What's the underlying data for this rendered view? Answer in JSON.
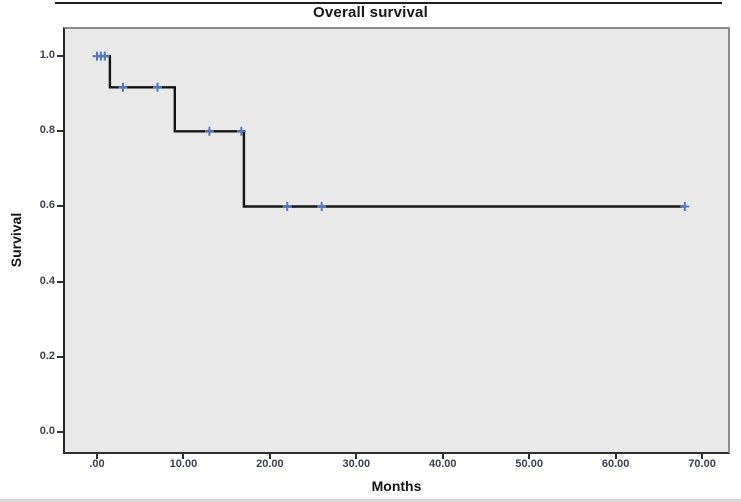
{
  "chart_data": {
    "type": "line",
    "subtype": "kaplan-meier-step",
    "title": "Overall survival",
    "xlabel": "Months",
    "ylabel": "Survival",
    "xlim": [
      -3.7,
      73.0
    ],
    "ylim": [
      -0.053,
      1.072
    ],
    "grid": false,
    "legend": false,
    "x_ticks": [
      {
        "value": 0,
        "label": ".00"
      },
      {
        "value": 10,
        "label": "10.00"
      },
      {
        "value": 20,
        "label": "20.00"
      },
      {
        "value": 30,
        "label": "30.00"
      },
      {
        "value": 40,
        "label": "40.00"
      },
      {
        "value": 50,
        "label": "50.00"
      },
      {
        "value": 60,
        "label": "60.00"
      },
      {
        "value": 70,
        "label": "70.00"
      }
    ],
    "y_ticks": [
      {
        "value": 0.0,
        "label": "0.0"
      },
      {
        "value": 0.2,
        "label": "0.2"
      },
      {
        "value": 0.4,
        "label": "0.4"
      },
      {
        "value": 0.6,
        "label": "0.6"
      },
      {
        "value": 0.8,
        "label": "0.8"
      },
      {
        "value": 1.0,
        "label": "1.0"
      }
    ],
    "series": [
      {
        "name": "Overall survival",
        "step_points": [
          [
            0,
            1.0
          ],
          [
            1.5,
            1.0
          ],
          [
            1.5,
            0.917
          ],
          [
            9,
            0.917
          ],
          [
            9,
            0.8
          ],
          [
            17,
            0.8
          ],
          [
            17,
            0.6
          ],
          [
            68,
            0.6
          ]
        ]
      }
    ],
    "censored_points": [
      [
        0,
        1.0
      ],
      [
        0.45,
        1.0
      ],
      [
        0.9,
        1.0
      ],
      [
        3,
        0.917
      ],
      [
        7,
        0.917
      ],
      [
        13,
        0.8
      ],
      [
        16.7,
        0.8
      ],
      [
        22,
        0.6
      ],
      [
        26,
        0.6
      ],
      [
        68,
        0.6
      ]
    ],
    "colors": {
      "curve": "#141414",
      "censor_mark": "#5577c0",
      "plot_background": "#e9e9e9",
      "frame_border": "#8c8c8c",
      "tick_text": "#3c4050"
    }
  }
}
